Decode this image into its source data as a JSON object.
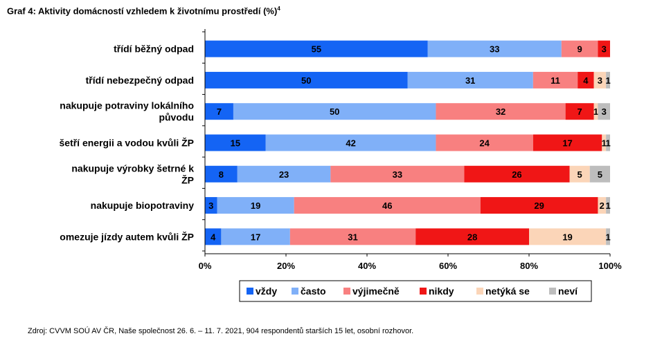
{
  "title": "Graf 4: Aktivity domácností vzhledem k životnímu prostředí (%)",
  "title_footnote": "4",
  "source": "Zdroj: CVVM SOÚ AV ČR, Naše společnost 26. 6. – 11. 7. 2021, 904 respondentů starších 15 let, osobní rozhovor.",
  "chart_data": {
    "type": "bar",
    "orientation": "horizontal",
    "stacked": true,
    "categories": [
      [
        "třídí běžný odpad"
      ],
      [
        "třídí nebezpečný odpad"
      ],
      [
        "nakupuje potraviny lokálního",
        "původu"
      ],
      [
        "šetří energii a vodou kvůli ŽP"
      ],
      [
        "nakupuje výrobky šetrné k",
        "ŽP"
      ],
      [
        "nakupuje biopotraviny"
      ],
      [
        "omezuje jízdy autem kvůli ŽP"
      ]
    ],
    "series": [
      {
        "name": "vždy",
        "color": "#1464f4",
        "values": [
          55,
          50,
          7,
          15,
          8,
          3,
          4
        ]
      },
      {
        "name": "často",
        "color": "#80b0f8",
        "values": [
          33,
          31,
          50,
          42,
          23,
          19,
          17
        ]
      },
      {
        "name": "výjimečně",
        "color": "#f88080",
        "values": [
          9,
          11,
          32,
          24,
          33,
          46,
          31
        ]
      },
      {
        "name": "nikdy",
        "color": "#f01616",
        "values": [
          3,
          4,
          7,
          17,
          26,
          29,
          28
        ]
      },
      {
        "name": "netýká se",
        "color": "#fbd5b8",
        "values": [
          0,
          3,
          1,
          1,
          5,
          2,
          19
        ]
      },
      {
        "name": "neví",
        "color": "#bdbdbd",
        "values": [
          0,
          1,
          3,
          1,
          5,
          1,
          1
        ]
      }
    ],
    "xlim": [
      0,
      100
    ],
    "xticks": [
      "0%",
      "20%",
      "40%",
      "60%",
      "80%",
      "100%"
    ],
    "legend": "bottom",
    "grid": false
  }
}
